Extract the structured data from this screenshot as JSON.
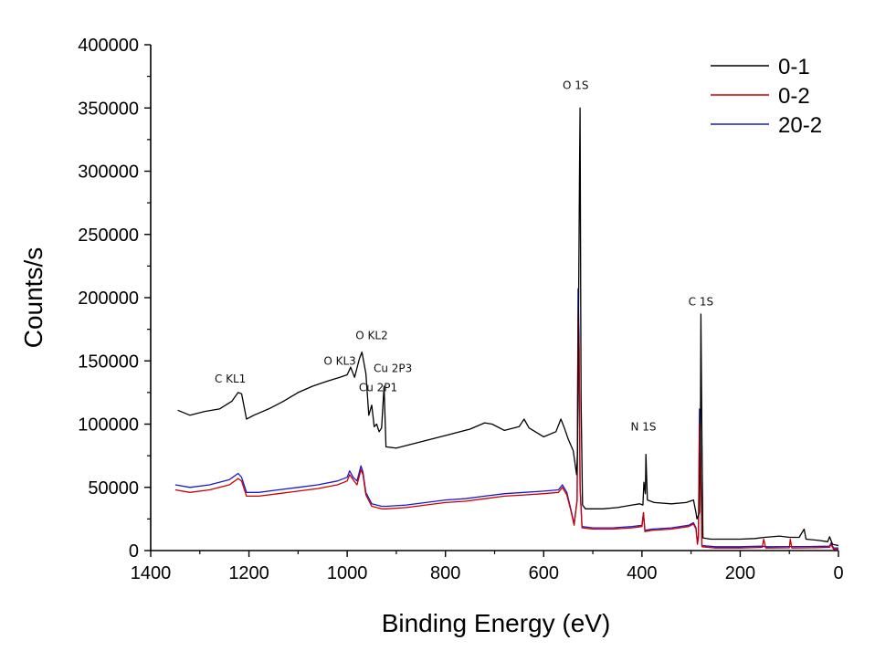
{
  "chart_data": {
    "type": "line",
    "title": "",
    "xlabel": "Binding Energy (eV)",
    "ylabel": "Counts/s",
    "xlim": [
      1400,
      0
    ],
    "ylim": [
      0,
      400000
    ],
    "x_ticks": [
      1400,
      1200,
      1000,
      800,
      600,
      400,
      200,
      0
    ],
    "x_tick_labels": [
      "1400",
      "1200",
      "1000",
      "800",
      "600",
      "400",
      "200",
      "0"
    ],
    "y_ticks": [
      0,
      50000,
      100000,
      150000,
      200000,
      250000,
      300000,
      350000,
      400000
    ],
    "y_tick_labels": [
      "0",
      "50000",
      "100000",
      "150000",
      "200000",
      "250000",
      "300000",
      "350000",
      "400000"
    ],
    "legend": {
      "placement": "top-right"
    },
    "series": [
      {
        "name": "0-1",
        "color": "#000000",
        "points": [
          [
            1345,
            111000
          ],
          [
            1320,
            107000
          ],
          [
            1290,
            110000
          ],
          [
            1260,
            112000
          ],
          [
            1235,
            118000
          ],
          [
            1222,
            125000
          ],
          [
            1215,
            124000
          ],
          [
            1205,
            104000
          ],
          [
            1190,
            107000
          ],
          [
            1160,
            112000
          ],
          [
            1130,
            118000
          ],
          [
            1100,
            125000
          ],
          [
            1070,
            130000
          ],
          [
            1040,
            134000
          ],
          [
            1015,
            137000
          ],
          [
            1000,
            139000
          ],
          [
            993,
            145000
          ],
          [
            985,
            137000
          ],
          [
            975,
            152000
          ],
          [
            970,
            157000
          ],
          [
            962,
            140000
          ],
          [
            956,
            107000
          ],
          [
            950,
            115000
          ],
          [
            945,
            98000
          ],
          [
            940,
            100000
          ],
          [
            935,
            94000
          ],
          [
            930,
            97000
          ],
          [
            925,
            130000
          ],
          [
            921,
            82000
          ],
          [
            900,
            81000
          ],
          [
            850,
            86000
          ],
          [
            800,
            91000
          ],
          [
            750,
            96000
          ],
          [
            720,
            101000
          ],
          [
            705,
            100000
          ],
          [
            680,
            95000
          ],
          [
            650,
            98000
          ],
          [
            640,
            104000
          ],
          [
            630,
            97000
          ],
          [
            600,
            90000
          ],
          [
            575,
            94000
          ],
          [
            565,
            104000
          ],
          [
            558,
            97000
          ],
          [
            550,
            88000
          ],
          [
            540,
            79000
          ],
          [
            533,
            60000
          ],
          [
            531,
            80000
          ],
          [
            527,
            300000
          ],
          [
            526,
            350000
          ],
          [
            524,
            120000
          ],
          [
            521,
            36000
          ],
          [
            515,
            33000
          ],
          [
            480,
            33000
          ],
          [
            450,
            34000
          ],
          [
            420,
            36000
          ],
          [
            405,
            37000
          ],
          [
            398,
            36000
          ],
          [
            396,
            54000
          ],
          [
            393,
            45000
          ],
          [
            392,
            76000
          ],
          [
            389,
            40000
          ],
          [
            375,
            38000
          ],
          [
            340,
            37000
          ],
          [
            310,
            38000
          ],
          [
            295,
            40000
          ],
          [
            290,
            30000
          ],
          [
            288,
            25000
          ],
          [
            283,
            30000
          ],
          [
            281,
            100000
          ],
          [
            280,
            187000
          ],
          [
            278,
            90000
          ],
          [
            276,
            10000
          ],
          [
            260,
            9000
          ],
          [
            230,
            9000
          ],
          [
            200,
            9000
          ],
          [
            170,
            9500
          ],
          [
            150,
            10500
          ],
          [
            120,
            11500
          ],
          [
            100,
            10500
          ],
          [
            80,
            10500
          ],
          [
            70,
            17000
          ],
          [
            66,
            9000
          ],
          [
            40,
            8000
          ],
          [
            22,
            7000
          ],
          [
            18,
            11000
          ],
          [
            12,
            5000
          ],
          [
            0,
            4000
          ]
        ]
      },
      {
        "name": "0-2",
        "color": "#cc0000",
        "points": [
          [
            1350,
            48000
          ],
          [
            1320,
            46000
          ],
          [
            1280,
            48000
          ],
          [
            1240,
            52000
          ],
          [
            1222,
            57000
          ],
          [
            1215,
            55000
          ],
          [
            1205,
            43000
          ],
          [
            1180,
            43000
          ],
          [
            1140,
            45000
          ],
          [
            1100,
            47000
          ],
          [
            1060,
            49000
          ],
          [
            1020,
            52000
          ],
          [
            1000,
            55000
          ],
          [
            995,
            60000
          ],
          [
            988,
            56000
          ],
          [
            980,
            52000
          ],
          [
            972,
            64000
          ],
          [
            968,
            60000
          ],
          [
            962,
            44000
          ],
          [
            950,
            35000
          ],
          [
            930,
            33000
          ],
          [
            920,
            33000
          ],
          [
            880,
            34000
          ],
          [
            840,
            36000
          ],
          [
            800,
            38000
          ],
          [
            760,
            39000
          ],
          [
            720,
            41000
          ],
          [
            680,
            43000
          ],
          [
            640,
            44000
          ],
          [
            600,
            45000
          ],
          [
            570,
            46000
          ],
          [
            562,
            50000
          ],
          [
            553,
            44000
          ],
          [
            545,
            32000
          ],
          [
            538,
            20000
          ],
          [
            532,
            40000
          ],
          [
            530,
            185000
          ],
          [
            528,
            160000
          ],
          [
            526,
            50000
          ],
          [
            522,
            18000
          ],
          [
            500,
            17000
          ],
          [
            460,
            17000
          ],
          [
            420,
            18000
          ],
          [
            400,
            19000
          ],
          [
            397,
            30000
          ],
          [
            394,
            15000
          ],
          [
            380,
            16000
          ],
          [
            340,
            17000
          ],
          [
            305,
            19000
          ],
          [
            295,
            21000
          ],
          [
            290,
            17000
          ],
          [
            287,
            5000
          ],
          [
            285,
            10000
          ],
          [
            283,
            100000
          ],
          [
            281,
            80000
          ],
          [
            278,
            3000
          ],
          [
            250,
            2000
          ],
          [
            200,
            2000
          ],
          [
            155,
            2500
          ],
          [
            152,
            9000
          ],
          [
            148,
            2000
          ],
          [
            100,
            2200
          ],
          [
            98,
            9000
          ],
          [
            95,
            2000
          ],
          [
            60,
            2200
          ],
          [
            18,
            2500
          ],
          [
            15,
            5000
          ],
          [
            10,
            1000
          ],
          [
            0,
            1000
          ]
        ]
      },
      {
        "name": "20-2",
        "color": "#1a1acc",
        "points": [
          [
            1350,
            52000
          ],
          [
            1320,
            50000
          ],
          [
            1280,
            52000
          ],
          [
            1240,
            56000
          ],
          [
            1222,
            61000
          ],
          [
            1215,
            58000
          ],
          [
            1205,
            46000
          ],
          [
            1180,
            46000
          ],
          [
            1140,
            48000
          ],
          [
            1100,
            50000
          ],
          [
            1060,
            52000
          ],
          [
            1020,
            55000
          ],
          [
            1000,
            58000
          ],
          [
            995,
            63000
          ],
          [
            988,
            58000
          ],
          [
            980,
            55000
          ],
          [
            972,
            67000
          ],
          [
            968,
            62000
          ],
          [
            962,
            46000
          ],
          [
            950,
            37000
          ],
          [
            930,
            35000
          ],
          [
            920,
            35000
          ],
          [
            880,
            36000
          ],
          [
            840,
            38000
          ],
          [
            800,
            40000
          ],
          [
            760,
            41000
          ],
          [
            720,
            43000
          ],
          [
            680,
            45000
          ],
          [
            640,
            46000
          ],
          [
            600,
            47000
          ],
          [
            570,
            48000
          ],
          [
            562,
            52000
          ],
          [
            553,
            46000
          ],
          [
            545,
            33000
          ],
          [
            538,
            21000
          ],
          [
            532,
            40000
          ],
          [
            530,
            207000
          ],
          [
            528,
            170000
          ],
          [
            526,
            50000
          ],
          [
            522,
            19000
          ],
          [
            500,
            18000
          ],
          [
            460,
            18000
          ],
          [
            420,
            19000
          ],
          [
            400,
            20000
          ],
          [
            397,
            30000
          ],
          [
            394,
            16000
          ],
          [
            380,
            17000
          ],
          [
            340,
            18000
          ],
          [
            305,
            20000
          ],
          [
            295,
            22000
          ],
          [
            290,
            18000
          ],
          [
            287,
            6000
          ],
          [
            285,
            12000
          ],
          [
            283,
            112000
          ],
          [
            281,
            90000
          ],
          [
            278,
            4000
          ],
          [
            250,
            3000
          ],
          [
            200,
            3000
          ],
          [
            155,
            3500
          ],
          [
            148,
            3000
          ],
          [
            100,
            3200
          ],
          [
            60,
            3200
          ],
          [
            18,
            3500
          ],
          [
            15,
            6000
          ],
          [
            10,
            2000
          ],
          [
            0,
            2000
          ]
        ]
      }
    ],
    "annotations": [
      {
        "text": "O 1S",
        "x": 535,
        "y": 365000
      },
      {
        "text": "C 1S",
        "x": 280,
        "y": 194000
      },
      {
        "text": "N 1S",
        "x": 397,
        "y": 95000
      },
      {
        "text": "O KL2",
        "x": 950,
        "y": 167000
      },
      {
        "text": "O KL3",
        "x": 1015,
        "y": 147000
      },
      {
        "text": "C KL1",
        "x": 1238,
        "y": 133000
      },
      {
        "text": "Cu 2P3",
        "x": 907,
        "y": 141000
      },
      {
        "text": "Cu 2P1",
        "x": 937,
        "y": 126000
      }
    ]
  }
}
